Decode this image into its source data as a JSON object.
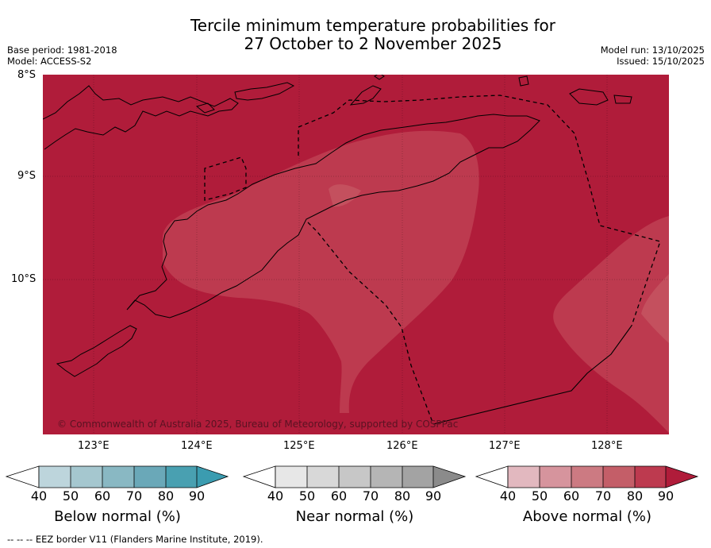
{
  "title": {
    "line1": "Tercile minimum temperature probabilities for",
    "line2": "27 October to 2 November 2025"
  },
  "left_meta": {
    "base_period": "Base period: 1981-2018",
    "model": "Model: ACCESS-S2"
  },
  "right_meta": {
    "model_run": "Model run: 13/10/2025",
    "issued": "Issued: 15/10/2025"
  },
  "map": {
    "lat_labels": [
      "8°S",
      "9°S",
      "10°S"
    ],
    "lon_labels": [
      "123°E",
      "124°E",
      "125°E",
      "126°E",
      "127°E",
      "128°E"
    ],
    "copyright": "© Commonwealth of Australia 2025, Bureau of Meteorology, supported by COSPPac",
    "colors": {
      "above_90": "#b01c3a",
      "above_80": "#bd3a4f",
      "above_70": "#c4505e",
      "land": "#000000"
    }
  },
  "colorbars": [
    {
      "label": "Below normal (%)",
      "ticks": [
        "40",
        "50",
        "60",
        "70",
        "80",
        "90"
      ],
      "colors": [
        "#bdd5dc",
        "#a5c7cf",
        "#89b8c3",
        "#6aa8b8",
        "#49a0b1"
      ],
      "extend_color": "#3b9cb0"
    },
    {
      "label": "Near normal (%)",
      "ticks": [
        "40",
        "50",
        "60",
        "70",
        "80",
        "90"
      ],
      "colors": [
        "#e7e7e7",
        "#d8d8d8",
        "#c7c7c7",
        "#b5b5b5",
        "#a3a3a3"
      ],
      "extend_color": "#8b8b8b"
    },
    {
      "label": "Above normal (%)",
      "ticks": [
        "40",
        "50",
        "60",
        "70",
        "80",
        "90"
      ],
      "colors": [
        "#e2b8bf",
        "#d6949d",
        "#cc7a82",
        "#c45e68",
        "#bd3a4f"
      ],
      "extend_color": "#b01c3a"
    }
  ],
  "footer": "--  --  -- EEZ border V11 (Flanders Marine Institute, 2019)."
}
